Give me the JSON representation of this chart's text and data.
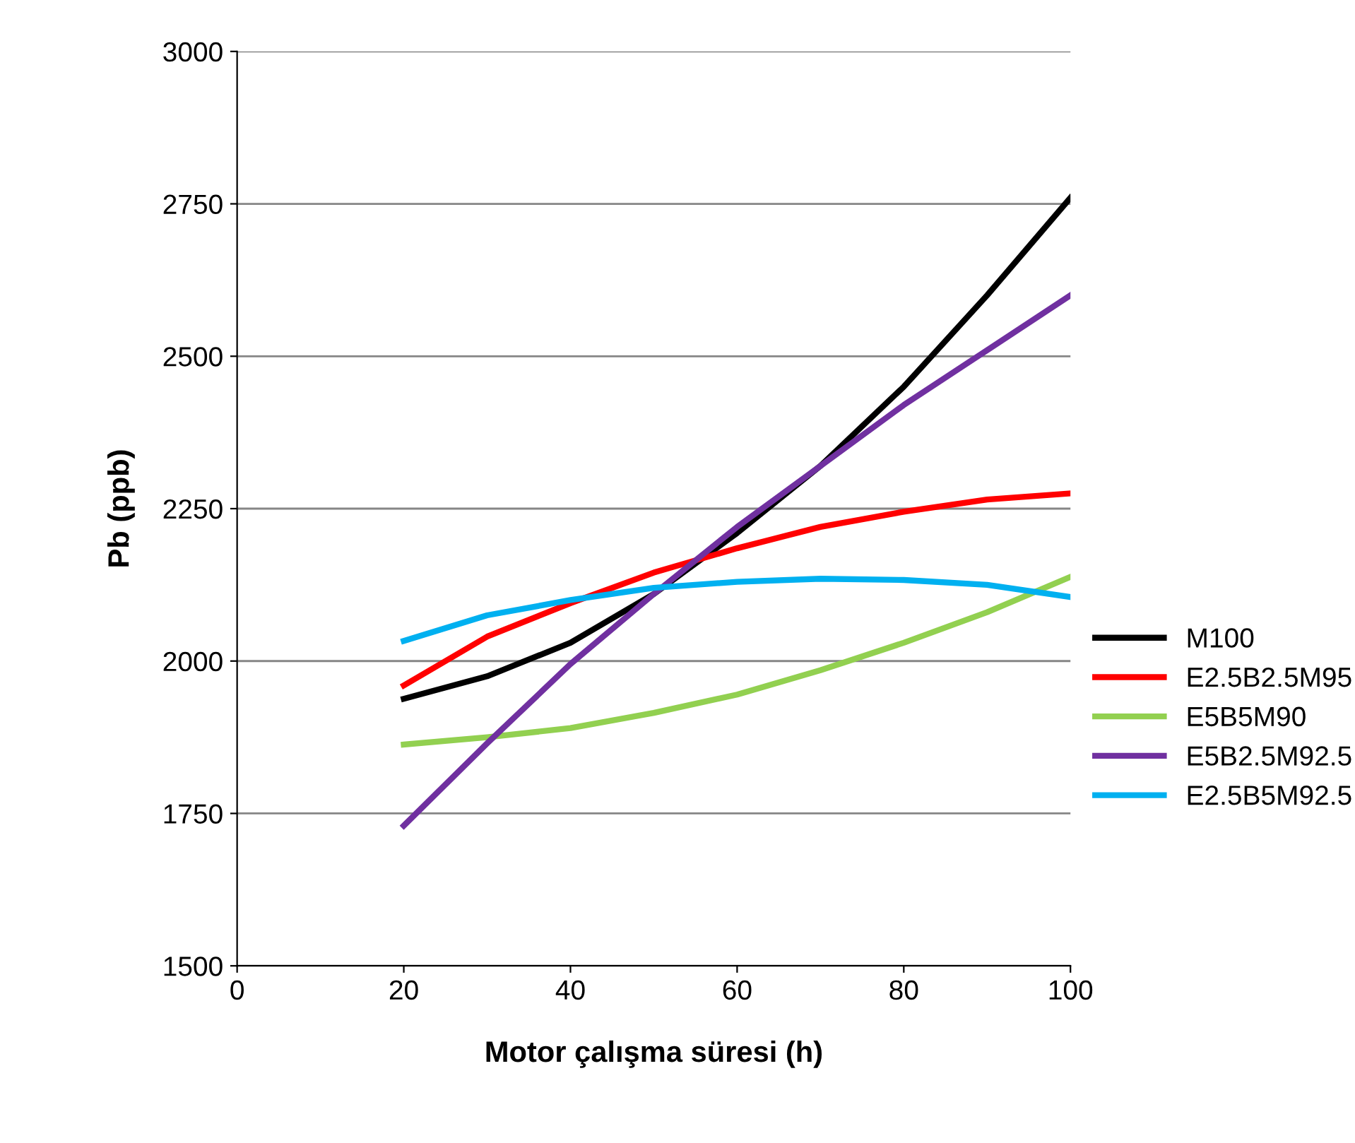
{
  "chart_data": {
    "type": "line",
    "xlabel": "Motor çalışma süresi (h)",
    "ylabel": "Pb (ppb)",
    "x": [
      20,
      30,
      40,
      50,
      60,
      70,
      80,
      90,
      100
    ],
    "series": [
      {
        "name": "M100",
        "color": "#000000",
        "values": [
          1938,
          1975,
          2030,
          2110,
          2210,
          2320,
          2450,
          2600,
          2760
        ]
      },
      {
        "name": "E2.5B2.5M95",
        "color": "#ff0000",
        "values": [
          1960,
          2040,
          2095,
          2145,
          2185,
          2220,
          2245,
          2265,
          2275
        ]
      },
      {
        "name": "E5B5M90",
        "color": "#92d050",
        "values": [
          1863,
          1875,
          1890,
          1915,
          1945,
          1985,
          2030,
          2080,
          2138
        ]
      },
      {
        "name": "E5B2.5M92.5",
        "color": "#7030a0",
        "values": [
          1730,
          1865,
          1995,
          2110,
          2220,
          2320,
          2420,
          2510,
          2600
        ]
      },
      {
        "name": "E2.5B5M92.5",
        "color": "#00b0f0",
        "values": [
          2033,
          2075,
          2100,
          2120,
          2130,
          2135,
          2133,
          2125,
          2105
        ]
      }
    ],
    "xlim": [
      0,
      100
    ],
    "xticks": [
      0,
      20,
      40,
      60,
      80,
      100
    ],
    "ylim": [
      1500,
      3000
    ],
    "yticks": [
      1500,
      1750,
      2000,
      2250,
      2500,
      2750,
      3000
    ],
    "grid": "y",
    "legend": "right",
    "marker": "none",
    "line_style": "solid"
  }
}
